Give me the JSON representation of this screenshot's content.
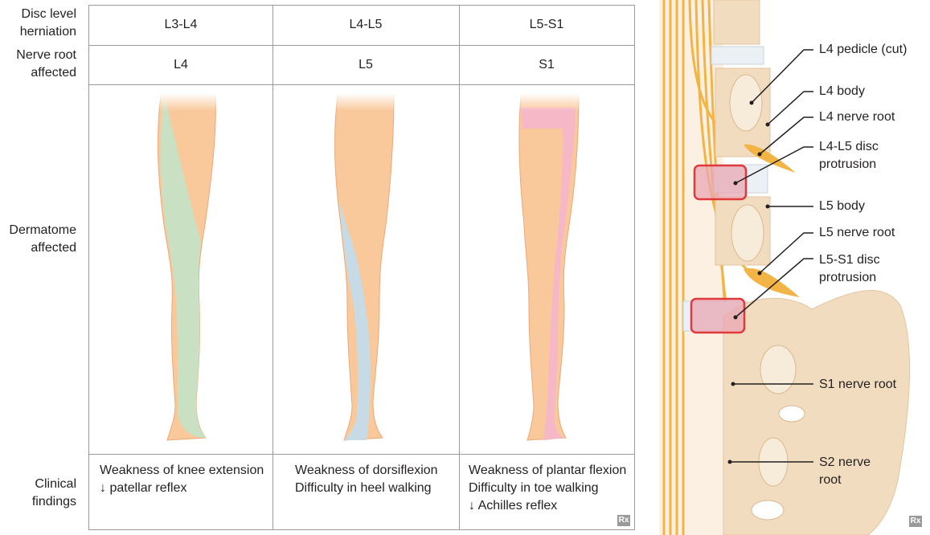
{
  "row_labels": {
    "disc_level": [
      "Disc level",
      "herniation"
    ],
    "nerve_root": [
      "Nerve root",
      "affected"
    ],
    "dermatome": [
      "Dermatome",
      "affected"
    ],
    "clinical": [
      "Clinical",
      "findings"
    ]
  },
  "columns": [
    {
      "disc": "L3-L4",
      "root": "L4",
      "findings": [
        "Weakness of knee extension",
        "↓ patellar reflex"
      ],
      "dermatome_color": "#c9e0c3"
    },
    {
      "disc": "L4-L5",
      "root": "L5",
      "findings": [
        "Weakness of dorsiflexion",
        "Difficulty in heel walking"
      ],
      "dermatome_color": "#c7dbe6"
    },
    {
      "disc": "L5-S1",
      "root": "S1",
      "findings": [
        "Weakness of plantar flexion",
        "Difficulty in toe walking",
        "↓ Achilles reflex"
      ],
      "dermatome_color": "#f6b8c6"
    }
  ],
  "spine_labels": {
    "l4_pedicle": "L4 pedicle (cut)",
    "l4_body": "L4 body",
    "l4_nerve_root": "L4 nerve root",
    "l4l5_disc": [
      "L4-L5 disc",
      "protrusion"
    ],
    "l5_body": "L5 body",
    "l5_nerve_root": "L5 nerve root",
    "l5s1_disc": [
      "L5-S1 disc",
      "protrusion"
    ],
    "s1_nerve_root": "S1 nerve root",
    "s2_nerve_root": [
      "S2 nerve",
      "root"
    ]
  },
  "watermark": "Rx",
  "colors": {
    "skin": "#f9c99c",
    "bone": "#f2dcbf",
    "nerve": "#f3b446",
    "disc_highlight": "#e0393b",
    "border": "#9a9a9a"
  }
}
